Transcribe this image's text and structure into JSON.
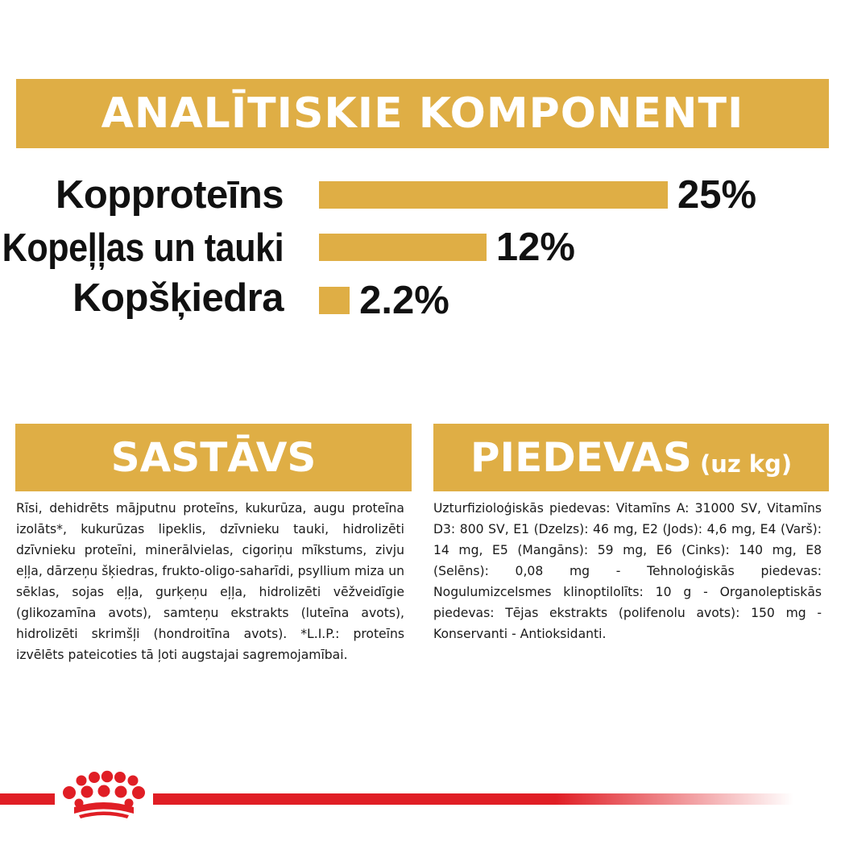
{
  "analytical": {
    "title": "ANALĪTISKIE KOMPONENTI",
    "rows": [
      {
        "id": "protein",
        "label": "Kopproteīns",
        "value": "25%",
        "percent": 25
      },
      {
        "id": "fat",
        "label": "Kopeļļas un tauki",
        "value": "12%",
        "percent": 12
      },
      {
        "id": "fibre",
        "label": "Kopšķiedra",
        "value": "2.2%",
        "percent": 2.2
      }
    ]
  },
  "composition": {
    "title": "SASTĀVS",
    "text": "Rīsi, dehidrēts mājputnu proteīns, kukurūza, augu proteīna izolāts*, kukurūzas lipeklis, dzīvnieku tauki, hidrolizēti dzīvnieku proteīni, minerālvielas, cigoriņu mīkstums, zivju eļļa, dārzeņu šķiedras, frukto-oligo-saharīdi, psyllium miza un sēklas, sojas eļļa, gurķeņu eļļa, hidrolizēti vēžveidīgie (glikozamīna avots), samteņu ekstrakts (luteīna avots), hidrolizēti skrimšļi (hondroitīna avots). *L.I.P.: proteīns izvēlēts pateicoties tā ļoti augstajai sagremojamībai."
  },
  "additives": {
    "title": "PIEDEVAS",
    "title_suffix": "(uz kg)",
    "text": "Uzturfizioloģiskās piedevas: Vitamīns A: 31000 SV, Vitamīns D3: 800 SV, E1 (Dzelzs): 46 mg, E2 (Jods): 4,6 mg, E4 (Varš): 14 mg, E5 (Mangāns): 59 mg, E6 (Cinks): 140 mg, E8 (Selēns): 0,08 mg - Tehnoloģiskās piedevas: Nogulumizcelsmes klinoptilolīts: 10 g - Organoleptiskās piedevas: Tējas ekstrakts (polifenolu avots): 150 mg - Konservanti - Antioksidanti."
  },
  "colors": {
    "accent": "#dfae45",
    "brand_red": "#e01e25"
  },
  "footer": {
    "logo_icon": "crown-icon"
  }
}
